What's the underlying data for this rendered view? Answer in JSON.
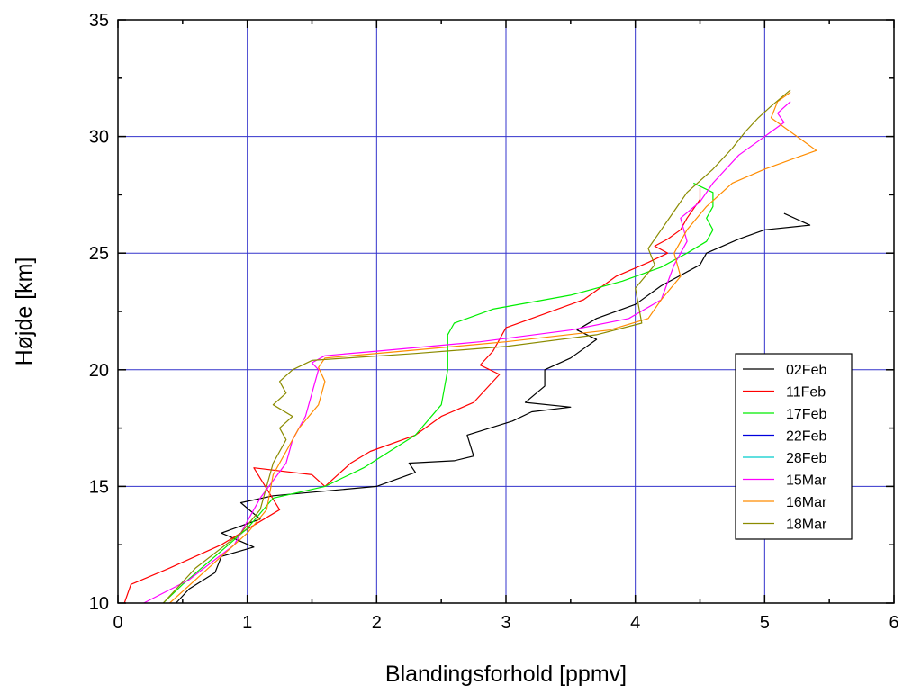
{
  "chart_data": {
    "type": "line",
    "title": "",
    "xlabel": "Blandingsforhold [ppmv]",
    "ylabel": "Højde [km]",
    "xlim": [
      0,
      6
    ],
    "ylim": [
      10,
      35
    ],
    "x_ticks": [
      "0",
      "1",
      "2",
      "3",
      "4",
      "5",
      "6"
    ],
    "y_ticks": [
      "10",
      "15",
      "20",
      "25",
      "30",
      "35"
    ],
    "grid": true,
    "legend_position": "right",
    "series": [
      {
        "name": "02Feb",
        "color": "#000000",
        "x": [
          0.45,
          0.55,
          0.75,
          0.8,
          1.05,
          0.8,
          1.1,
          0.95,
          1.2,
          2.0,
          2.3,
          2.25,
          2.6,
          2.75,
          2.7,
          3.05,
          3.2,
          3.5,
          3.15,
          3.3,
          3.3,
          3.5,
          3.7,
          3.55,
          3.7,
          4.0,
          4.2,
          4.5,
          4.55,
          4.8,
          5.0,
          5.35,
          5.15
        ],
        "y": [
          10.0,
          10.6,
          11.3,
          12.0,
          12.4,
          13.0,
          13.6,
          14.3,
          14.6,
          15.0,
          15.6,
          16.0,
          16.1,
          16.3,
          17.2,
          17.8,
          18.2,
          18.4,
          18.6,
          19.3,
          20.0,
          20.5,
          21.3,
          21.7,
          22.2,
          22.8,
          23.6,
          24.5,
          25.0,
          25.6,
          26.0,
          26.2,
          26.7
        ]
      },
      {
        "name": "11Feb",
        "color": "#ff0000",
        "x": [
          0.05,
          0.1,
          0.4,
          0.8,
          1.25,
          1.05,
          1.5,
          1.6,
          1.8,
          1.95,
          2.3,
          2.5,
          2.75,
          2.95,
          2.8,
          2.9,
          3.0,
          3.3,
          3.6,
          3.85,
          4.1,
          4.25,
          4.15,
          4.25,
          4.35,
          4.4,
          4.5,
          4.5
        ],
        "y": [
          10.0,
          10.8,
          11.5,
          12.5,
          14.0,
          15.8,
          15.5,
          15.0,
          16.0,
          16.5,
          17.2,
          18.0,
          18.6,
          19.8,
          20.2,
          20.8,
          21.8,
          22.4,
          23.0,
          24.0,
          24.6,
          25.0,
          25.3,
          25.6,
          26.0,
          26.5,
          27.3,
          27.8
        ]
      },
      {
        "name": "17Feb",
        "color": "#00ee00",
        "x": [
          0.35,
          0.5,
          0.75,
          1.0,
          1.2,
          1.6,
          1.9,
          2.1,
          2.3,
          2.5,
          2.55,
          2.55,
          2.6,
          2.9,
          3.5,
          3.9,
          4.2,
          4.4,
          4.55,
          4.6,
          4.55,
          4.6,
          4.6,
          4.45
        ],
        "y": [
          10.0,
          10.8,
          12.0,
          13.2,
          14.5,
          15.0,
          15.8,
          16.5,
          17.2,
          18.5,
          20.0,
          21.5,
          22.0,
          22.6,
          23.2,
          23.8,
          24.4,
          25.0,
          25.5,
          26.0,
          26.5,
          27.0,
          27.6,
          28.0
        ]
      },
      {
        "name": "22Feb",
        "color": "#0000dd",
        "x": [],
        "y": []
      },
      {
        "name": "28Feb",
        "color": "#00cccc",
        "x": [],
        "y": []
      },
      {
        "name": "15Mar",
        "color": "#ff00ff",
        "x": [
          0.2,
          0.55,
          0.9,
          1.1,
          1.3,
          1.35,
          1.45,
          1.5,
          1.55,
          1.5,
          1.6,
          2.0,
          2.8,
          3.5,
          3.95,
          4.2,
          4.3,
          4.4,
          4.35,
          4.5,
          4.6,
          4.7,
          4.8,
          4.95,
          5.05,
          5.15,
          5.1,
          5.2
        ],
        "y": [
          10.0,
          11.0,
          12.5,
          14.5,
          16.0,
          17.0,
          18.0,
          19.0,
          20.0,
          20.3,
          20.6,
          20.8,
          21.2,
          21.7,
          22.2,
          23.0,
          24.5,
          25.5,
          26.5,
          27.2,
          28.0,
          28.6,
          29.2,
          29.8,
          30.2,
          30.6,
          31.0,
          31.5
        ]
      },
      {
        "name": "16Mar",
        "color": "#ff8c00",
        "x": [
          0.4,
          0.7,
          1.0,
          1.15,
          1.2,
          1.3,
          1.4,
          1.55,
          1.6,
          1.55,
          1.6,
          2.2,
          3.0,
          3.8,
          4.1,
          4.2,
          4.35,
          4.3,
          4.4,
          4.55,
          4.75,
          5.0,
          5.3,
          5.4,
          5.25,
          5.05,
          5.1,
          5.2
        ],
        "y": [
          10.0,
          11.5,
          13.0,
          14.0,
          15.5,
          16.5,
          17.5,
          18.5,
          19.5,
          20.1,
          20.5,
          20.8,
          21.2,
          21.7,
          22.2,
          23.0,
          24.0,
          25.0,
          26.0,
          27.0,
          28.0,
          28.6,
          29.2,
          29.4,
          30.0,
          30.8,
          31.5,
          31.9
        ]
      },
      {
        "name": "18Mar",
        "color": "#8b8b00",
        "x": [
          0.35,
          0.6,
          0.95,
          1.1,
          1.15,
          1.2,
          1.3,
          1.25,
          1.35,
          1.2,
          1.3,
          1.25,
          1.35,
          1.5,
          2.3,
          3.0,
          3.7,
          4.05,
          4.0,
          4.15,
          4.1,
          4.2,
          4.3,
          4.4,
          4.6,
          4.75,
          4.85,
          4.95,
          5.05,
          5.2
        ],
        "y": [
          10.0,
          11.5,
          13.0,
          14.0,
          15.0,
          16.0,
          17.0,
          17.5,
          18.0,
          18.5,
          19.0,
          19.5,
          20.0,
          20.4,
          20.7,
          21.0,
          21.5,
          22.0,
          23.5,
          24.5,
          25.2,
          26.0,
          26.8,
          27.6,
          28.6,
          29.5,
          30.2,
          30.8,
          31.3,
          32.0
        ]
      }
    ]
  }
}
